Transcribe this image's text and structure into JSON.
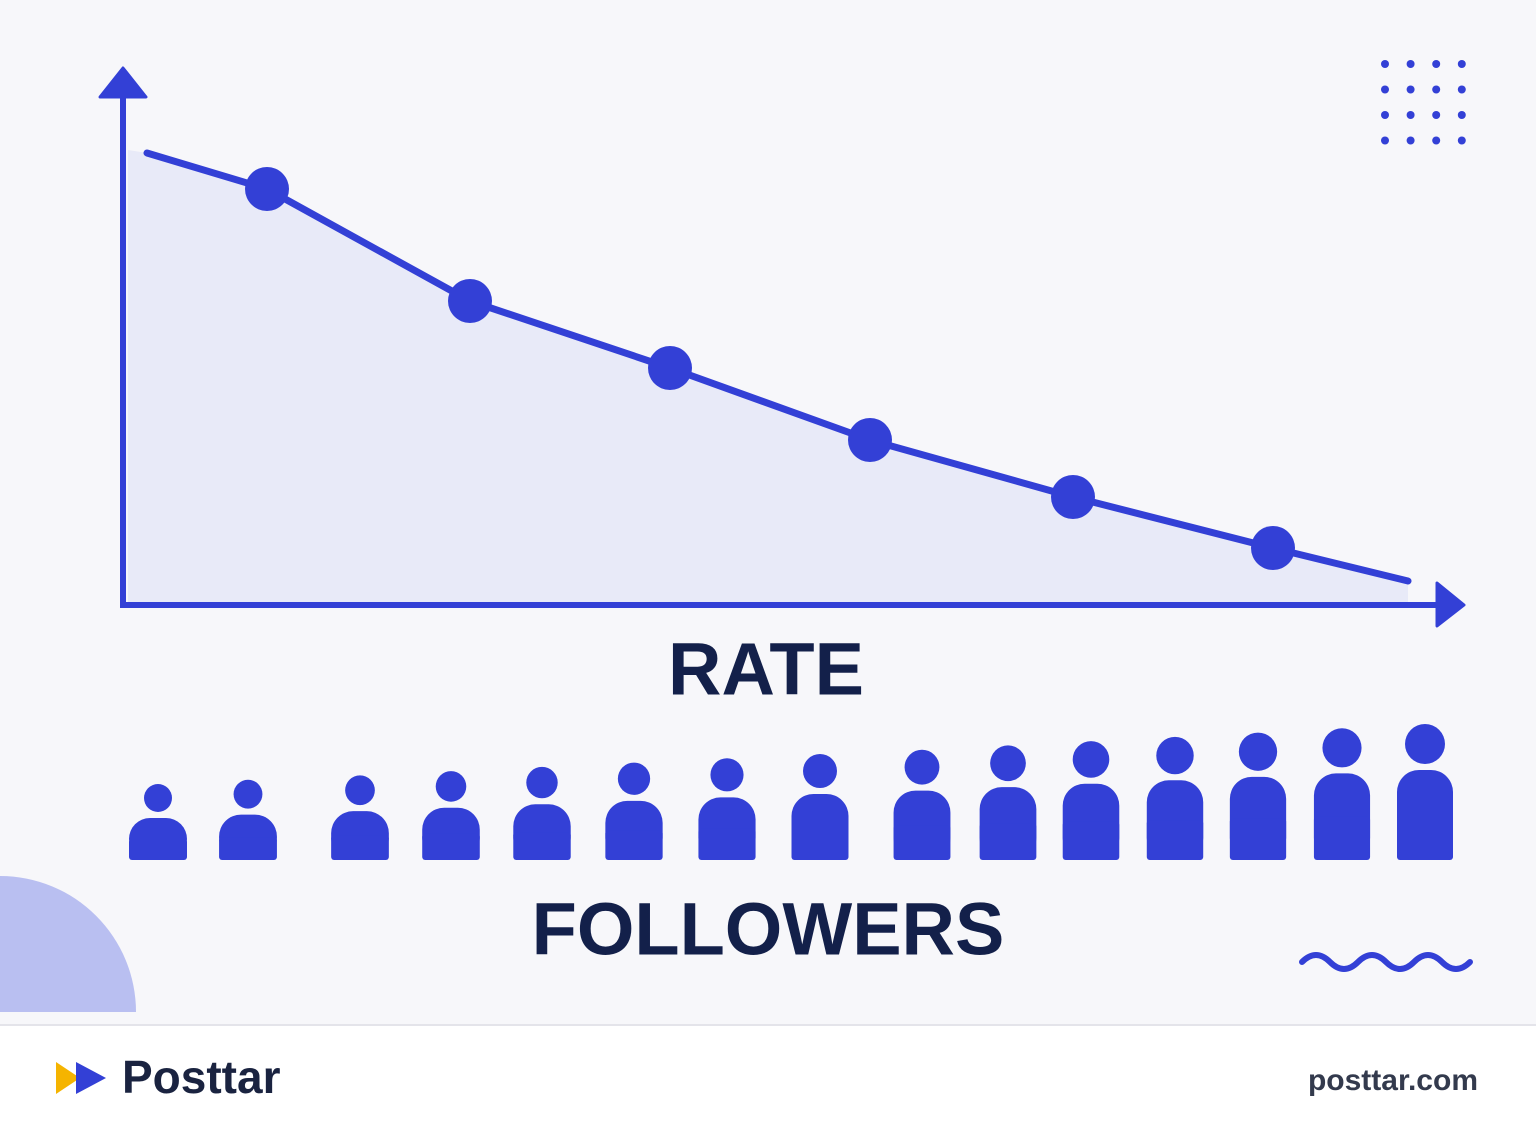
{
  "illustration": {
    "axis_label": "RATE",
    "caption": "FOLLOWERS"
  },
  "footer": {
    "brand": "Posttar",
    "url": "posttar.com"
  }
}
